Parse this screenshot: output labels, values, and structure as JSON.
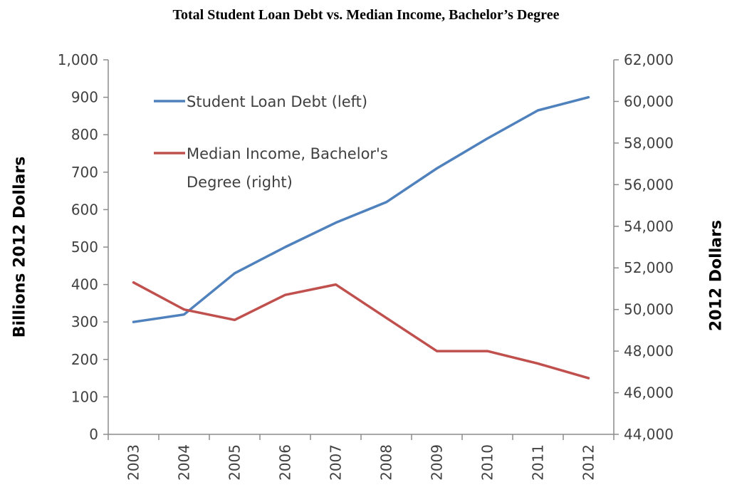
{
  "chart_data": {
    "type": "line",
    "title": "Total Student Loan Debt vs. Median Income, Bachelor’s Degree",
    "categories": [
      "2003",
      "2004",
      "2005",
      "2006",
      "2007",
      "2008",
      "2009",
      "2010",
      "2011",
      "2012"
    ],
    "ylabel_left": "Billions 2012 Dollars",
    "ylabel_right": "2012 Dollars",
    "ylim_left": [
      0,
      1000
    ],
    "ylim_right": [
      44000,
      62000
    ],
    "yticks_left": [
      "0",
      "100",
      "200",
      "300",
      "400",
      "500",
      "600",
      "700",
      "800",
      "900",
      "1,000"
    ],
    "yticks_right": [
      "44,000",
      "46,000",
      "48,000",
      "50,000",
      "52,000",
      "54,000",
      "56,000",
      "58,000",
      "60,000",
      "62,000"
    ],
    "grid": false,
    "legend_position": "top-left inside",
    "series": [
      {
        "name": "Student Loan Debt (left)",
        "axis": "left",
        "color": "#4f81bd",
        "values": [
          300,
          320,
          430,
          500,
          565,
          620,
          710,
          790,
          865,
          900
        ]
      },
      {
        "name_lines": [
          "Median Income, Bachelor's",
          "Degree (right)"
        ],
        "axis": "right",
        "color": "#c0504d",
        "values": [
          51300,
          50000,
          49500,
          50700,
          51200,
          49600,
          48000,
          48000,
          47400,
          46700
        ]
      }
    ]
  }
}
